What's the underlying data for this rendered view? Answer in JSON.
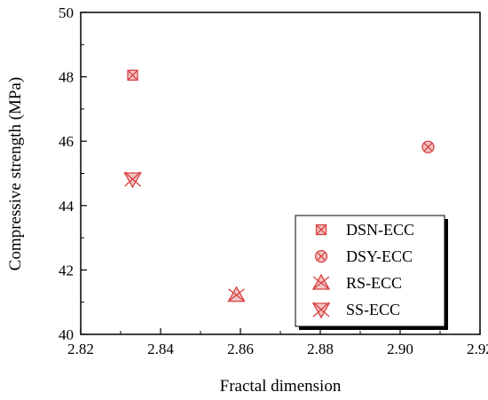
{
  "chart_data": {
    "type": "scatter",
    "xlabel": "Fractal dimension",
    "ylabel": "Compressive strength (MPa)",
    "xlim": [
      2.82,
      2.92
    ],
    "ylim": [
      40,
      50
    ],
    "x_ticks": [
      "2.82",
      "2.84",
      "2.86",
      "2.88",
      "2.90",
      "2.92"
    ],
    "y_ticks": [
      "40",
      "42",
      "44",
      "46",
      "48",
      "50"
    ],
    "grid": false,
    "legend_position": "bottom-right",
    "marker_color": "#d94040",
    "series": [
      {
        "name": "DSN-ECC",
        "marker": "square-x",
        "points": [
          {
            "x": 2.833,
            "y": 48.05
          }
        ]
      },
      {
        "name": "DSY-ECC",
        "marker": "circle-x",
        "points": [
          {
            "x": 2.907,
            "y": 45.82
          }
        ]
      },
      {
        "name": "RS-ECC",
        "marker": "triangle-x",
        "points": [
          {
            "x": 2.859,
            "y": 41.22
          }
        ]
      },
      {
        "name": "SS-ECC",
        "marker": "star-x",
        "points": [
          {
            "x": 2.833,
            "y": 44.82
          }
        ]
      }
    ]
  }
}
